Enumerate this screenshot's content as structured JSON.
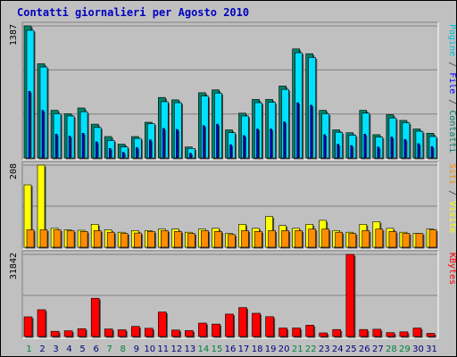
{
  "title": "Contatti giornalieri per Agosto 2010",
  "colors": {
    "pagine": "#00e0ff",
    "file": "#0000ff",
    "contatti": "#00806a",
    "siti": "#ffff00",
    "visite": "#ff8c00",
    "kbytes": "#ff0000",
    "panel_bg": "#c0c0c0",
    "grid": "#808080",
    "title": "#0000c0"
  },
  "chart_data": [
    {
      "type": "bar",
      "panel": "top",
      "ymax_label": "1387",
      "ylim": [
        0,
        1387
      ],
      "legend": [
        {
          "text": "Pagine",
          "color": "#00c0e0"
        },
        {
          "text": " / ",
          "color": "#404040"
        },
        {
          "text": "File",
          "color": "#0000ff"
        },
        {
          "text": " / ",
          "color": "#404040"
        },
        {
          "text": "Contatti",
          "color": "#00806a"
        }
      ],
      "categories": [
        "1",
        "2",
        "3",
        "4",
        "5",
        "6",
        "7",
        "8",
        "9",
        "10",
        "11",
        "12",
        "13",
        "14",
        "15",
        "16",
        "17",
        "18",
        "19",
        "20",
        "21",
        "22",
        "23",
        "24",
        "25",
        "26",
        "27",
        "28",
        "29",
        "30",
        "31"
      ],
      "series": [
        {
          "name": "Contatti",
          "values": [
            1387,
            990,
            500,
            465,
            525,
            355,
            225,
            145,
            225,
            375,
            635,
            610,
            115,
            685,
            715,
            295,
            470,
            615,
            615,
            755,
            1145,
            1095,
            500,
            295,
            265,
            500,
            245,
            455,
            395,
            305,
            260
          ]
        },
        {
          "name": "Pagine",
          "values": [
            1340,
            955,
            465,
            440,
            485,
            320,
            185,
            115,
            205,
            360,
            590,
            580,
            100,
            650,
            680,
            265,
            440,
            580,
            585,
            720,
            1105,
            1055,
            465,
            270,
            240,
            470,
            220,
            420,
            370,
            280,
            225
          ]
        },
        {
          "name": "File",
          "values": [
            700,
            500,
            250,
            230,
            260,
            170,
            100,
            60,
            110,
            190,
            310,
            300,
            50,
            340,
            355,
            140,
            235,
            305,
            305,
            380,
            580,
            555,
            245,
            145,
            130,
            250,
            115,
            220,
            195,
            150,
            120
          ]
        }
      ]
    },
    {
      "type": "bar",
      "panel": "middle",
      "ymax_label": "208",
      "ylim": [
        0,
        208
      ],
      "legend": [
        {
          "text": "Siti",
          "color": "#ff8c00"
        },
        {
          "text": " / ",
          "color": "#404040"
        },
        {
          "text": "Visite",
          "color": "#ffff00"
        }
      ],
      "categories": [
        "1",
        "2",
        "3",
        "4",
        "5",
        "6",
        "7",
        "8",
        "9",
        "10",
        "11",
        "12",
        "13",
        "14",
        "15",
        "16",
        "17",
        "18",
        "19",
        "20",
        "21",
        "22",
        "23",
        "24",
        "25",
        "26",
        "27",
        "28",
        "29",
        "30",
        "31"
      ],
      "series": [
        {
          "name": "Visite",
          "values": [
            158,
            208,
            48,
            44,
            43,
            58,
            44,
            38,
            42,
            42,
            46,
            46,
            38,
            46,
            48,
            35,
            58,
            48,
            78,
            55,
            48,
            58,
            68,
            42,
            38,
            58,
            65,
            48,
            38,
            35,
            46
          ]
        },
        {
          "name": "Siti",
          "values": [
            44,
            44,
            44,
            42,
            40,
            42,
            38,
            35,
            36,
            40,
            42,
            40,
            35,
            42,
            40,
            32,
            42,
            40,
            42,
            42,
            42,
            46,
            46,
            38,
            35,
            42,
            46,
            40,
            35,
            35,
            44
          ]
        }
      ]
    },
    {
      "type": "bar",
      "panel": "bottom",
      "ymax_label": "31842",
      "ylim": [
        0,
        31842
      ],
      "legend": [
        {
          "text": "KBytes",
          "color": "#ff0000"
        }
      ],
      "categories": [
        "1",
        "2",
        "3",
        "4",
        "5",
        "6",
        "7",
        "8",
        "9",
        "10",
        "11",
        "12",
        "13",
        "14",
        "15",
        "16",
        "17",
        "18",
        "19",
        "20",
        "21",
        "22",
        "23",
        "24",
        "25",
        "26",
        "27",
        "28",
        "29",
        "30",
        "31"
      ],
      "series": [
        {
          "name": "KBytes",
          "values": [
            7600,
            10400,
            2000,
            2200,
            3000,
            14800,
            2900,
            2600,
            3900,
            3200,
            9500,
            2500,
            2300,
            5200,
            4800,
            8700,
            11200,
            9000,
            7700,
            3300,
            3300,
            4400,
            1400,
            2700,
            31842,
            2700,
            2800,
            1500,
            1800,
            3300,
            1200
          ]
        }
      ]
    }
  ],
  "day_colors": {
    "weekend_days": [
      "1",
      "7",
      "8",
      "14",
      "15",
      "21",
      "22",
      "28",
      "29"
    ],
    "weekend_color": "#008040",
    "weekday_color": "#000080"
  }
}
